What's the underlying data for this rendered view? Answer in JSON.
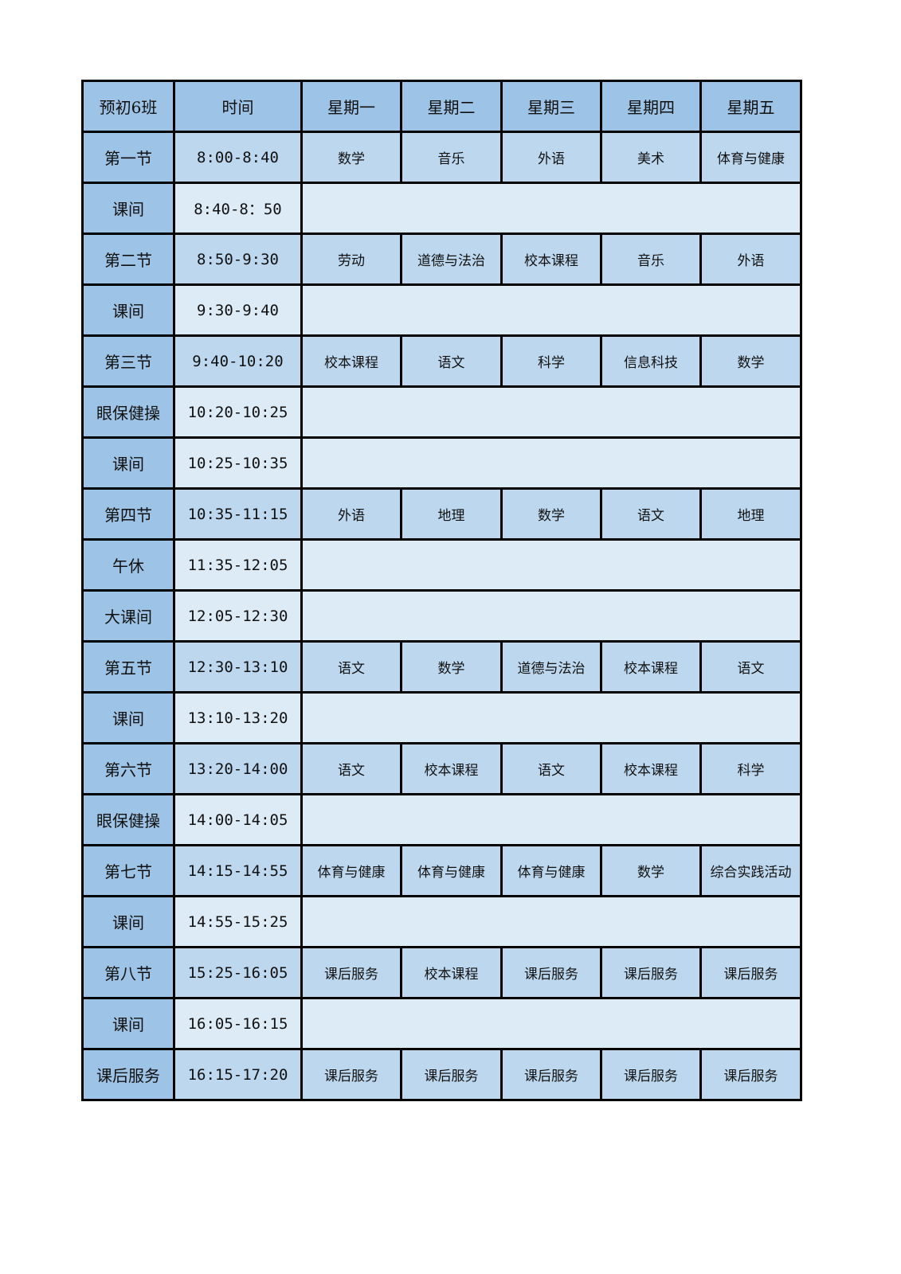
{
  "header": [
    "预初6班",
    "时间",
    "星期一",
    "星期二",
    "星期三",
    "星期四",
    "星期五"
  ],
  "rows": [
    {
      "label": "第一节",
      "time": "8:00-8:40",
      "subjects": [
        "数学",
        "音乐",
        "外语",
        "美术",
        "体育与健康"
      ]
    },
    {
      "label": "课间",
      "time": "8:40-8：50",
      "subjects": null
    },
    {
      "label": "第二节",
      "time": "8:50-9:30",
      "subjects": [
        "劳动",
        "道德与法治",
        "校本课程",
        "音乐",
        "外语"
      ]
    },
    {
      "label": "课间",
      "time": "9:30-9:40",
      "subjects": null
    },
    {
      "label": "第三节",
      "time": "9:40-10:20",
      "subjects": [
        "校本课程",
        "语文",
        "科学",
        "信息科技",
        "数学"
      ]
    },
    {
      "label": "眼保健操",
      "time": "10:20-10:25",
      "subjects": null
    },
    {
      "label": "课间",
      "time": "10:25-10:35",
      "subjects": null
    },
    {
      "label": "第四节",
      "time": "10:35-11:15",
      "subjects": [
        "外语",
        "地理",
        "数学",
        "语文",
        "地理"
      ]
    },
    {
      "label": "午休",
      "time": "11:35-12:05",
      "subjects": null
    },
    {
      "label": "大课间",
      "time": "12:05-12:30",
      "subjects": null
    },
    {
      "label": "第五节",
      "time": "12:30-13:10",
      "subjects": [
        "语文",
        "数学",
        "道德与法治",
        "校本课程",
        "语文"
      ]
    },
    {
      "label": "课间",
      "time": "13:10-13:20",
      "subjects": null
    },
    {
      "label": "第六节",
      "time": "13:20-14:00",
      "subjects": [
        "语文",
        "校本课程",
        "语文",
        "校本课程",
        "科学"
      ]
    },
    {
      "label": "眼保健操",
      "time": "14:00-14:05",
      "subjects": null
    },
    {
      "label": "第七节",
      "time": "14:15-14:55",
      "subjects": [
        "体育与健康",
        "体育与健康",
        "体育与健康",
        "数学",
        "综合实践活动"
      ]
    },
    {
      "label": "课间",
      "time": "14:55-15:25",
      "subjects": null
    },
    {
      "label": "第八节",
      "time": "15:25-16:05",
      "subjects": [
        "课后服务",
        "校本课程",
        "课后服务",
        "课后服务",
        "课后服务"
      ]
    },
    {
      "label": "课间",
      "time": "16:05-16:15",
      "subjects": null
    },
    {
      "label": "课后服务",
      "time": "16:15-17:20",
      "subjects": [
        "课后服务",
        "课后服务",
        "课后服务",
        "课后服务",
        "课后服务"
      ]
    }
  ]
}
